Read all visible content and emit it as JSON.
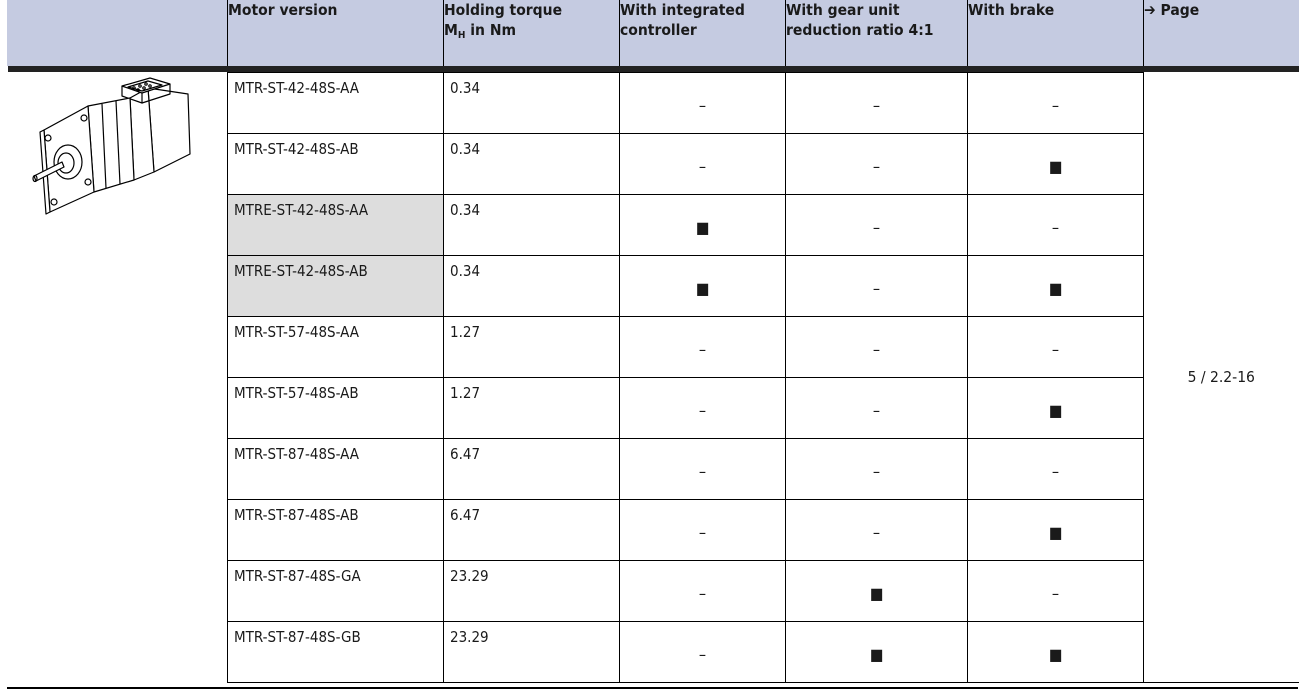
{
  "header": {
    "motor_version": "Motor version",
    "holding_torque_line1": "Holding torque",
    "holding_torque_m": "M",
    "holding_torque_sub": "H",
    "holding_torque_unit": " in Nm",
    "integrated_controller": "With integrated controller",
    "gear_unit": "With gear unit reduction ratio 4:1",
    "brake": "With brake",
    "page": "➔ Page"
  },
  "page_ref": "5 / 2.2-16",
  "image": {
    "icon": "stepper-motor-icon"
  },
  "rows": [
    {
      "version": "MTR-ST-42-48S-AA",
      "torque": "0.34",
      "controller": "–",
      "gear": "–",
      "brake": "–",
      "shaded": false
    },
    {
      "version": "MTR-ST-42-48S-AB",
      "torque": "0.34",
      "controller": "–",
      "gear": "–",
      "brake": "■",
      "shaded": false
    },
    {
      "version": "MTRE-ST-42-48S-AA",
      "torque": "0.34",
      "controller": "■",
      "gear": "–",
      "brake": "–",
      "shaded": true
    },
    {
      "version": "MTRE-ST-42-48S-AB",
      "torque": "0.34",
      "controller": "■",
      "gear": "–",
      "brake": "■",
      "shaded": true
    },
    {
      "version": "MTR-ST-57-48S-AA",
      "torque": "1.27",
      "controller": "–",
      "gear": "–",
      "brake": "–",
      "shaded": false
    },
    {
      "version": "MTR-ST-57-48S-AB",
      "torque": "1.27",
      "controller": "–",
      "gear": "–",
      "brake": "■",
      "shaded": false
    },
    {
      "version": "MTR-ST-87-48S-AA",
      "torque": "6.47",
      "controller": "–",
      "gear": "–",
      "brake": "–",
      "shaded": false
    },
    {
      "version": "MTR-ST-87-48S-AB",
      "torque": "6.47",
      "controller": "–",
      "gear": "–",
      "brake": "■",
      "shaded": false
    },
    {
      "version": "MTR-ST-87-48S-GA",
      "torque": "23.29",
      "controller": "–",
      "gear": "■",
      "brake": "–",
      "shaded": false
    },
    {
      "version": "MTR-ST-87-48S-GB",
      "torque": "23.29",
      "controller": "–",
      "gear": "■",
      "brake": "■",
      "shaded": false
    }
  ],
  "colors": {
    "header_bg": "#c5cbe1",
    "shaded_cell": "#dddddd",
    "rule": "#222222"
  }
}
